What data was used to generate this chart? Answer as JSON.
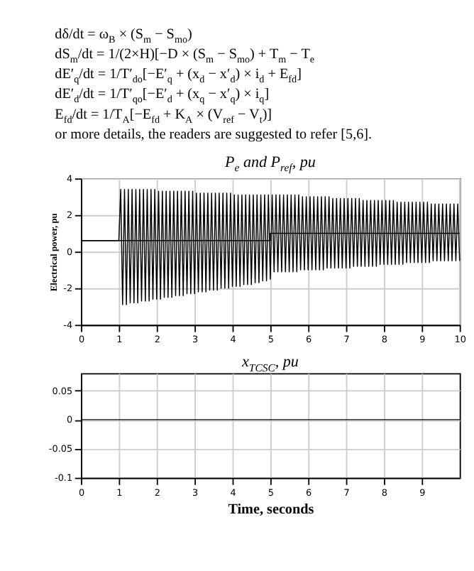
{
  "chart_data": [
    {
      "type": "line",
      "title": "P$_{e}$ and P$_{ref}$, pu",
      "ylabel": "Electrical power, pu",
      "annotations": [
        "dδ/dt = ω$_{B}$ × (S$_{m}$ − S$_{mo}$)",
        "dS$_{m}$/dt = 1/(2×H)[−D × (S$_{m}$ − S$_{mo}$) + T$_{m}$ − T$_{e}$",
        "dE′$_{q}$/dt = 1/T′$_{do}$[−E′$_{q}$ + (x$_{d}$ − x′$_{d}$) × i$_{d}$ + E$_{fd}$]",
        "dE′$_{d}$/dt = 1/T′$_{qo}$[−E′$_{d}$ + (x$_{q}$ − x′$_{q}$) × i$_{q}$]",
        "E$_{fd}$/dt = 1/T$_{A}$[−E$_{fd}$ + K$_{A}$ × (V$_{ref}$ − V$_{t}$)]",
        "or more details, the readers are suggested to refer [5,6]."
      ],
      "xlim": [
        0,
        10
      ],
      "xticks": [
        0,
        1,
        2,
        3,
        4,
        5,
        6,
        7,
        8,
        9,
        10
      ],
      "ylim": [
        -4,
        4
      ],
      "yticks": [
        -4,
        -2,
        0,
        2,
        4
      ],
      "grid": true,
      "series": [
        {
          "color": "#000000",
          "x": [
            0,
            1,
            1.05,
            1.1,
            1.15,
            1.2,
            1.25,
            1.3,
            1.35,
            1.4,
            1.45,
            1.5,
            1.55,
            1.6,
            1.65,
            1.7,
            1.75,
            1.8,
            1.85,
            1.9,
            1.95,
            2.0,
            2.05,
            2.1,
            2.15,
            2.2,
            2.25,
            2.3,
            2.35,
            2.4,
            2.45,
            2.5,
            2.55,
            2.6,
            2.65,
            2.7,
            2.75,
            2.8,
            2.85,
            2.9,
            2.95,
            3.0,
            3.05,
            3.1,
            3.15,
            3.2,
            3.25,
            3.3,
            3.35,
            3.4,
            3.45,
            3.5,
            3.55,
            3.6,
            3.65,
            3.7,
            3.75,
            3.8,
            3.85,
            3.9,
            3.95,
            4.0,
            4.05,
            4.1,
            4.15,
            4.2,
            4.25,
            4.3,
            4.35,
            4.4,
            4.45,
            4.5,
            4.55,
            4.6,
            4.65,
            4.7,
            4.75,
            4.8,
            4.85,
            4.9,
            4.95,
            5.0,
            5.05,
            5.1,
            5.15,
            5.2,
            5.25,
            5.3,
            5.35,
            5.4,
            5.45,
            5.5,
            5.55,
            5.6,
            5.65,
            5.7,
            5.75,
            5.8,
            5.85,
            5.9,
            5.95,
            6.0,
            6.05,
            6.1,
            6.15,
            6.2,
            6.25,
            6.3,
            6.35,
            6.4,
            6.45,
            6.5,
            6.55,
            6.6,
            6.65,
            6.7,
            6.75,
            6.8,
            6.85,
            6.9,
            6.95,
            7.0,
            7.05,
            7.1,
            7.15,
            7.2,
            7.25,
            7.3,
            7.35,
            7.4,
            7.45,
            7.5,
            7.55,
            7.6,
            7.65,
            7.7,
            7.75,
            7.8,
            7.85,
            7.9,
            7.95,
            8.0,
            8.05,
            8.1,
            8.15,
            8.2,
            8.25,
            8.3,
            8.35,
            8.4,
            8.45,
            8.5,
            8.55,
            8.6,
            8.65,
            8.7,
            8.75,
            8.8,
            8.85,
            8.9,
            8.95,
            9.0,
            9.05,
            9.1,
            9.15,
            9.2,
            9.25,
            9.3,
            9.35,
            9.4,
            9.45,
            9.5,
            9.55,
            9.6,
            9.65,
            9.7,
            9.75,
            9.8,
            9.85,
            9.9,
            9.95,
            10.0
          ],
          "values": [
            0.6,
            0.6,
            3.4,
            -2.9,
            3.4,
            -2.9,
            3.4,
            -2.8,
            3.4,
            -2.8,
            3.4,
            -2.8,
            3.4,
            -2.7,
            3.4,
            -2.7,
            3.4,
            -2.7,
            3.4,
            -2.6,
            3.4,
            -2.6,
            3.3,
            -2.6,
            3.3,
            -2.5,
            3.3,
            -2.5,
            3.3,
            -2.5,
            3.3,
            -2.4,
            3.3,
            -2.4,
            3.3,
            -2.4,
            3.3,
            -2.3,
            3.3,
            -2.3,
            3.3,
            -2.3,
            3.2,
            -2.2,
            3.2,
            -2.2,
            3.2,
            -2.2,
            3.2,
            -2.1,
            3.2,
            -2.1,
            3.2,
            -2.1,
            3.2,
            -2.0,
            3.2,
            -2.0,
            3.2,
            -2.0,
            3.2,
            -1.9,
            3.1,
            -1.9,
            3.1,
            -1.9,
            3.1,
            -1.8,
            3.1,
            -1.8,
            3.1,
            -1.8,
            3.1,
            -1.7,
            3.1,
            -1.7,
            3.1,
            -1.6,
            3.1,
            -1.6,
            3.1,
            -1.5,
            3.1,
            -1.1,
            3.1,
            -1.1,
            3.1,
            -1.1,
            3.1,
            -1.1,
            3.1,
            -1.1,
            3.1,
            -1.1,
            3.1,
            -1.1,
            3.1,
            -1.0,
            3.0,
            -1.0,
            3.0,
            -1.0,
            3.0,
            -1.0,
            3.0,
            -1.0,
            3.0,
            -1.0,
            3.0,
            -1.0,
            3.0,
            -0.9,
            3.0,
            -0.9,
            2.9,
            -0.9,
            2.9,
            -0.9,
            2.9,
            -0.9,
            2.9,
            -0.9,
            2.9,
            -0.9,
            2.9,
            -0.8,
            2.9,
            -0.8,
            2.9,
            -0.8,
            2.8,
            -0.8,
            2.8,
            -0.8,
            2.8,
            -0.8,
            2.8,
            -0.8,
            2.8,
            -0.7,
            2.8,
            -0.7,
            2.8,
            -0.7,
            2.8,
            -0.7,
            2.8,
            -0.7,
            2.7,
            -0.7,
            2.7,
            -0.7,
            2.7,
            -0.6,
            2.7,
            -0.6,
            2.7,
            -0.6,
            2.7,
            -0.6,
            2.7,
            -0.6,
            2.7,
            -0.6,
            2.7,
            -0.6,
            2.6,
            -0.5,
            2.6,
            -0.5,
            2.6,
            -0.5,
            2.6,
            -0.5,
            2.6,
            -0.5,
            2.6,
            -0.5,
            2.6,
            -0.5,
            2.6,
            -0.5
          ]
        },
        {
          "color": "#000000",
          "x": [
            0,
            5,
            5,
            10
          ],
          "values": [
            0.6,
            0.6,
            1.0,
            1.0
          ]
        }
      ]
    },
    {
      "type": "line",
      "title": "x$_{TCSC}$, pu",
      "xlabel": "Time, seconds",
      "xlim": [
        0,
        10
      ],
      "xticks": [
        0,
        1,
        2,
        3,
        4,
        5,
        6,
        7,
        8,
        9
      ],
      "ylim": [
        -0.1,
        0.08
      ],
      "yticks": [
        -0.1,
        -0.05,
        0,
        0.05
      ],
      "grid": true,
      "series": [
        {
          "color": "#000000",
          "x": [
            0,
            10
          ],
          "values": [
            0,
            0
          ]
        }
      ]
    }
  ]
}
